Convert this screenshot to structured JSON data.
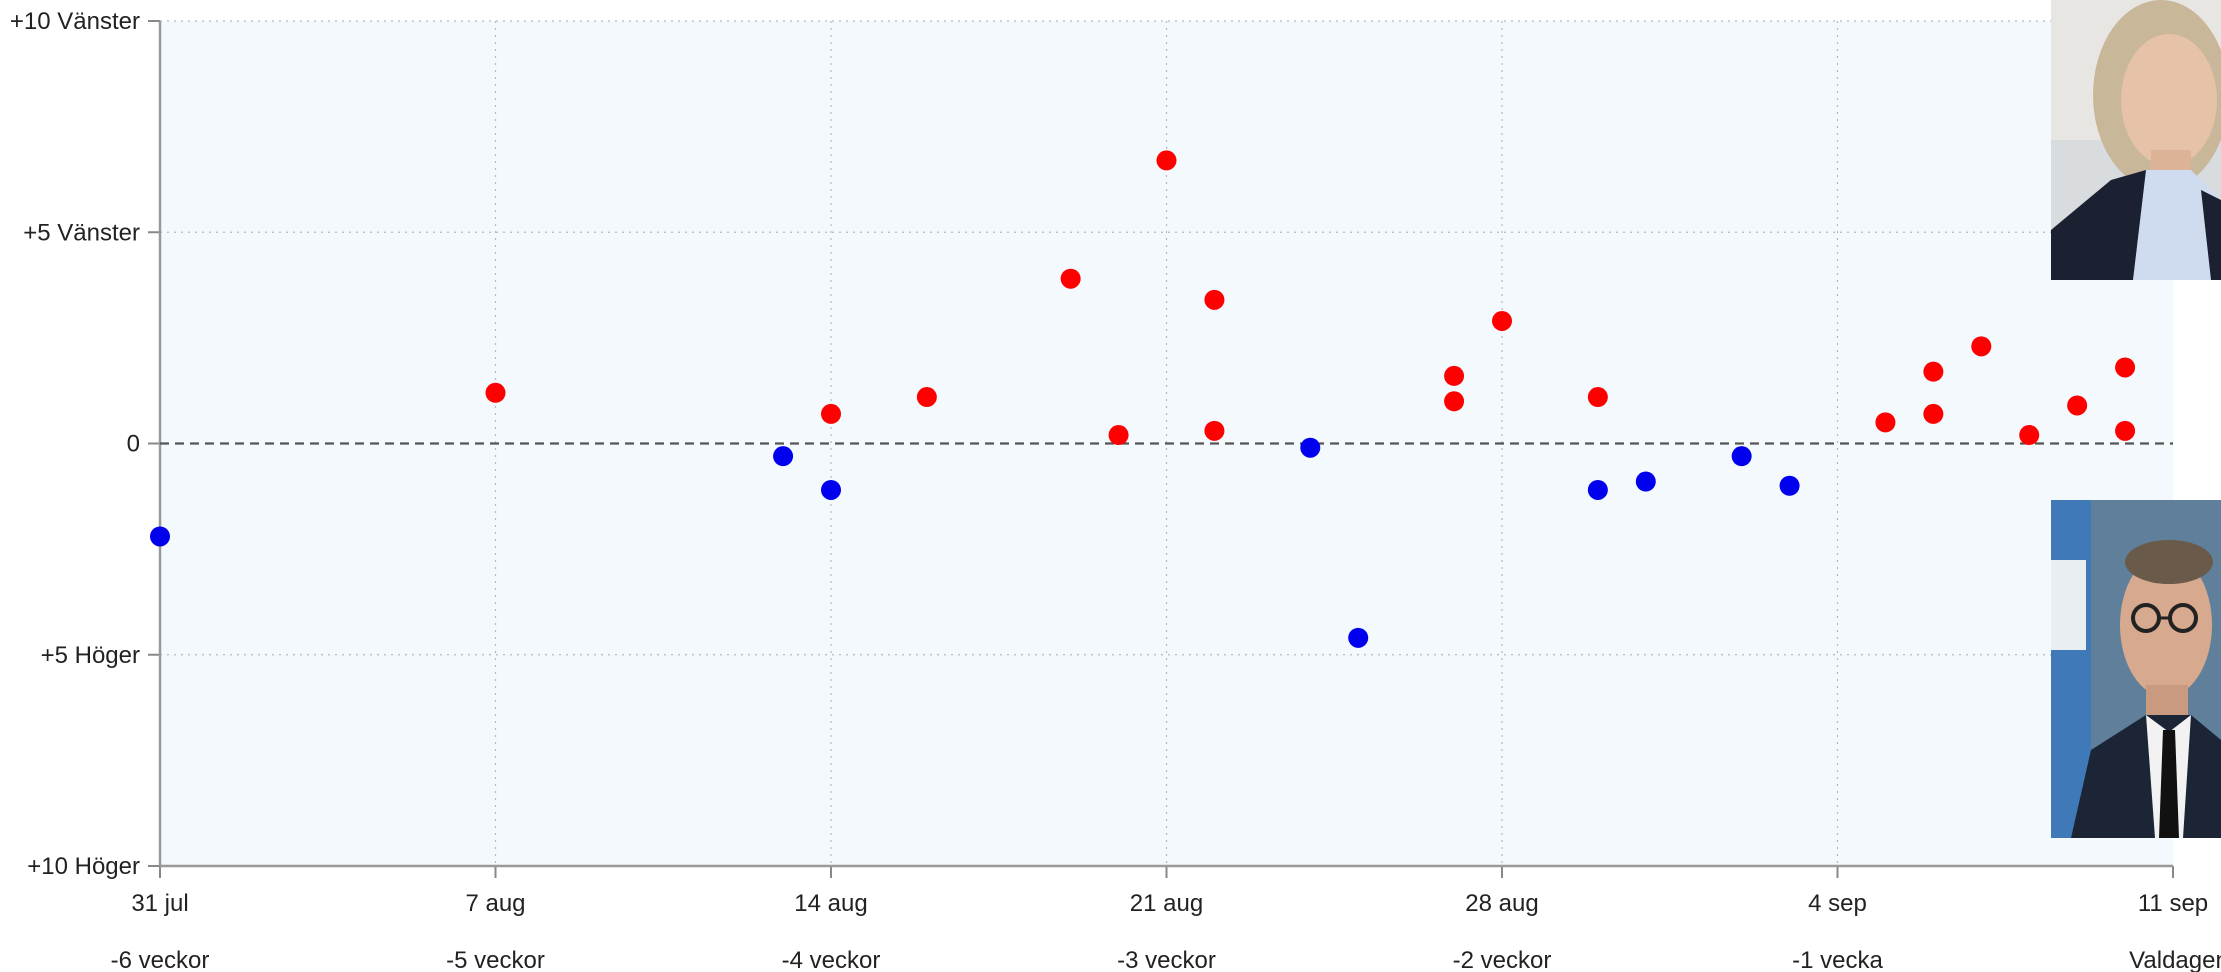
{
  "chart_data": {
    "type": "scatter",
    "title": "",
    "xlabel": "",
    "ylabel": "",
    "xlim": [
      "2022-07-31",
      "2022-09-11"
    ],
    "ylim": [
      -10,
      10
    ],
    "grid": true,
    "zero_line": "dashed",
    "background_color": "#f3f9fd",
    "y_ticks": [
      {
        "value": 10,
        "label": "+10 Vänster"
      },
      {
        "value": 5,
        "label": "+5 Vänster"
      },
      {
        "value": 0,
        "label": "0"
      },
      {
        "value": -5,
        "label": "+5 Höger"
      },
      {
        "value": -10,
        "label": "+10 Höger"
      }
    ],
    "x_ticks": [
      {
        "date": "2022-07-31",
        "label": "31 jul",
        "sublabel": "-6 veckor"
      },
      {
        "date": "2022-08-07",
        "label": "7 aug",
        "sublabel": "-5 veckor"
      },
      {
        "date": "2022-08-14",
        "label": "14 aug",
        "sublabel": "-4 veckor"
      },
      {
        "date": "2022-08-21",
        "label": "21 aug",
        "sublabel": "-3 veckor"
      },
      {
        "date": "2022-08-28",
        "label": "28 aug",
        "sublabel": "-2 veckor"
      },
      {
        "date": "2022-09-04",
        "label": "4 sep",
        "sublabel": "-1 vecka"
      },
      {
        "date": "2022-09-11",
        "label": "11 sep",
        "sublabel": "Valdagen"
      }
    ],
    "series": [
      {
        "color": "#ff0000",
        "points": [
          [
            "2022-08-07",
            1.2
          ],
          [
            "2022-08-14",
            0.7
          ],
          [
            "2022-08-16",
            1.1
          ],
          [
            "2022-08-19",
            3.9
          ],
          [
            "2022-08-20",
            0.2
          ],
          [
            "2022-08-21",
            6.7
          ],
          [
            "2022-08-22",
            3.4
          ],
          [
            "2022-08-22",
            0.3
          ],
          [
            "2022-08-27",
            1.6
          ],
          [
            "2022-08-27",
            1.0
          ],
          [
            "2022-08-28",
            2.9
          ],
          [
            "2022-08-30",
            1.1
          ],
          [
            "2022-09-05",
            0.5
          ],
          [
            "2022-09-06",
            1.7
          ],
          [
            "2022-09-06",
            0.7
          ],
          [
            "2022-09-07",
            2.3
          ],
          [
            "2022-09-08",
            0.2
          ],
          [
            "2022-09-09",
            0.9
          ],
          [
            "2022-09-10",
            0.3
          ],
          [
            "2022-09-10",
            1.8
          ]
        ]
      },
      {
        "color": "#0000ee",
        "points": [
          [
            "2022-07-31",
            -2.2
          ],
          [
            "2022-08-13",
            -0.3
          ],
          [
            "2022-08-14",
            -1.1
          ],
          [
            "2022-08-24",
            -0.1
          ],
          [
            "2022-08-25",
            -4.6
          ],
          [
            "2022-08-30",
            -1.1
          ],
          [
            "2022-08-31",
            -0.9
          ],
          [
            "2022-09-02",
            -0.3
          ],
          [
            "2022-09-03",
            -1.0
          ]
        ]
      }
    ]
  },
  "photos": {
    "top": {
      "name": "left-candidate-photo",
      "side": "Vänster"
    },
    "bottom": {
      "name": "right-candidate-photo",
      "side": "Höger"
    }
  }
}
